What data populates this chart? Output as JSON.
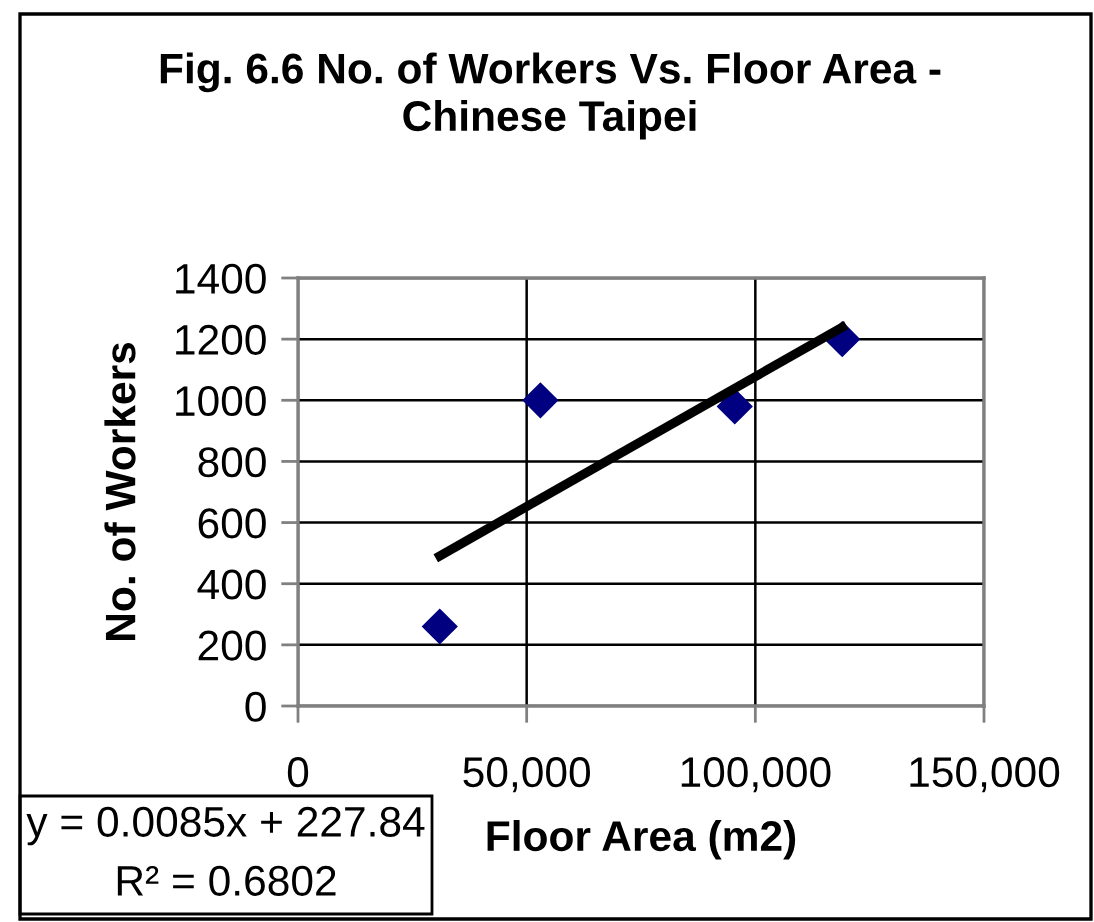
{
  "chart_data": {
    "type": "scatter",
    "title": "Fig. 6.6 No. of Workers Vs. Floor Area - Chinese Taipei",
    "xlabel": "Floor Area (m2)",
    "ylabel": "No. of Workers",
    "annotations": [
      "y = 0.0085x + 227.84",
      "R² = 0.6802"
    ],
    "series": [
      {
        "color": "#000080",
        "x": [
          31000,
          53000,
          95500,
          119000
        ],
        "values": [
          260,
          1000,
          980,
          1200
        ]
      },
      {
        "type": "line",
        "color": "#000000",
        "x": [
          31000,
          119000
        ],
        "values": [
          491,
          1239
        ],
        "marker": "none",
        "line_style": "solid"
      }
    ],
    "xlim": [
      0,
      150000
    ],
    "xticks": [
      0,
      {
        "value": 50000,
        "label": "50,000"
      },
      {
        "value": 100000,
        "label": "100,000"
      },
      {
        "value": 150000,
        "label": "150,000"
      }
    ],
    "ylim": [
      0,
      1400
    ],
    "yticks": [
      0,
      200,
      400,
      600,
      800,
      1000,
      1200,
      1400
    ],
    "grid": true,
    "marker": "diamond"
  }
}
